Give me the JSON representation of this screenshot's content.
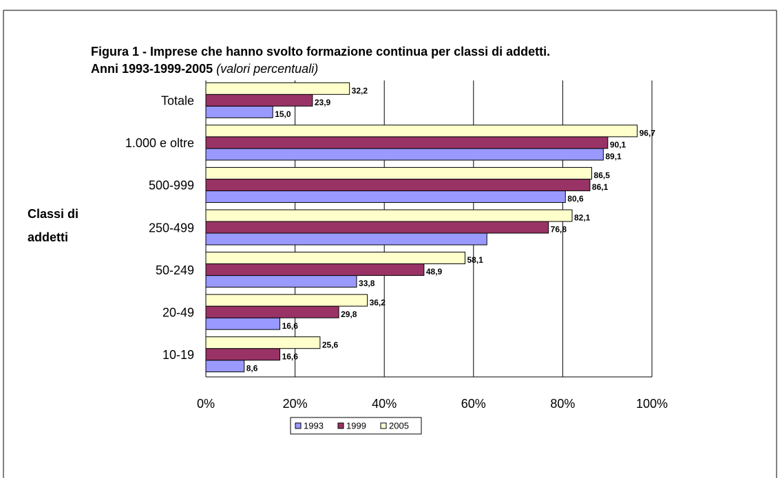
{
  "chart_data": {
    "type": "bar",
    "orientation": "horizontal",
    "title": "Figura 1 - Imprese che hanno svolto formazione continua per classi di addetti.",
    "subtitle": "Anni 1993-1999-2005",
    "subtitle_note": "(valori percentuali)",
    "ylabel": [
      "Classi di",
      "addetti"
    ],
    "categories": [
      "Totale",
      "1.000 e oltre",
      "500-999",
      "250-499",
      "50-249",
      "20-49",
      "10-19"
    ],
    "series": [
      {
        "name": "1993",
        "color": "#9999ff",
        "values": [
          15.0,
          89.1,
          80.6,
          63,
          33.8,
          16.6,
          8.6
        ],
        "value_labels": [
          "15,0",
          "89,1",
          "80,6",
          null,
          "33,8",
          "16,6",
          "8,6"
        ]
      },
      {
        "name": "1999",
        "color": "#993366",
        "values": [
          23.9,
          90.1,
          86.1,
          76.8,
          48.9,
          29.8,
          16.6
        ],
        "value_labels": [
          "23,9",
          "90,1",
          "86,1",
          "76,8",
          "48,9",
          "29,8",
          "16,6"
        ]
      },
      {
        "name": "2005",
        "color": "#ffffcc",
        "values": [
          32.2,
          96.7,
          86.5,
          82.1,
          58.1,
          36.2,
          25.6
        ],
        "value_labels": [
          "32,2",
          "96,7",
          "86,5",
          "82,1",
          "58,1",
          "36,2",
          "25,6"
        ]
      }
    ],
    "xlim": [
      0,
      100
    ],
    "xticks": [
      {
        "value": 0,
        "label": "0%"
      },
      {
        "value": 20,
        "label": "20%"
      },
      {
        "value": 40,
        "label": "40%"
      },
      {
        "value": 60,
        "label": "60%"
      },
      {
        "value": 80,
        "label": "80%"
      },
      {
        "value": 100,
        "label": "100%"
      }
    ],
    "grid": true,
    "legend": "bottom"
  }
}
